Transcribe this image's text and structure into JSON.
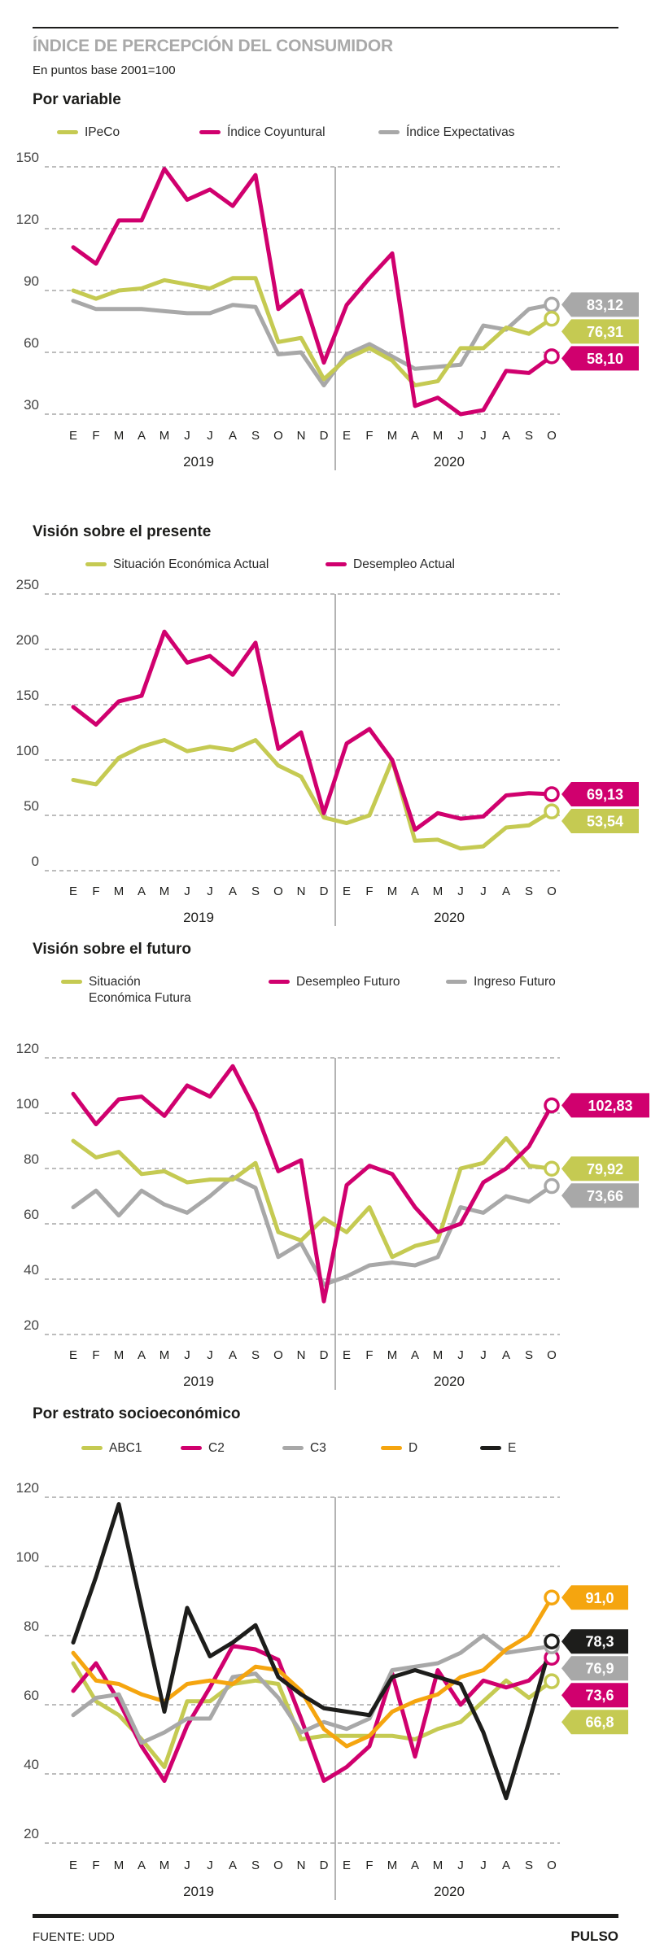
{
  "header": {
    "title": "ÍNDICE DE PERCEPCIÓN DEL CONSUMIDOR",
    "subtitle": "En puntos base 2001=100"
  },
  "footer": {
    "source": "FUENTE: UDD",
    "brand": "PULSO"
  },
  "palette": {
    "olive": "#c5ca52",
    "magenta": "#d0006e",
    "gray": "#a8a8a8",
    "orange": "#f5a50f",
    "black": "#1d1d1b",
    "grid": "#bdbdbd",
    "axis_text": "#444444",
    "divider": "#9a9a9a"
  },
  "months": [
    "E",
    "F",
    "M",
    "A",
    "M",
    "J",
    "J",
    "A",
    "S",
    "O",
    "N",
    "D",
    "E",
    "F",
    "M",
    "A",
    "M",
    "J",
    "J",
    "A",
    "S",
    "O"
  ],
  "years": [
    "2019",
    "2020"
  ],
  "chart_data": [
    {
      "type": "line",
      "title": "Por variable",
      "ylim": [
        30,
        150
      ],
      "y_ticks": [
        150,
        120,
        90,
        60,
        30
      ],
      "grid": "dashed",
      "legend_position": "top",
      "series": [
        {
          "name": "IPeCo",
          "color": "#c5ca52",
          "z": 1,
          "end_label": "76,31",
          "values": [
            90,
            86,
            90,
            91,
            95,
            93,
            91,
            96,
            96,
            65,
            67,
            47,
            57,
            62,
            56,
            44,
            46,
            62,
            62,
            72,
            69,
            76.31
          ]
        },
        {
          "name": "Índice Coyuntural",
          "color": "#d0006e",
          "z": 2,
          "end_label": "58,10",
          "values": [
            111,
            103,
            124,
            124,
            149,
            134,
            139,
            131,
            146,
            81,
            90,
            55,
            83,
            96,
            108,
            34,
            38,
            30,
            32,
            51,
            50,
            58.1
          ]
        },
        {
          "name": "Índice Expectativas",
          "color": "#a8a8a8",
          "z": 0,
          "end_label": "83,12",
          "values": [
            85,
            81,
            81,
            81,
            80,
            79,
            79,
            83,
            82,
            59,
            60,
            44,
            59,
            64,
            58,
            52,
            53,
            54,
            73,
            71,
            81,
            83.12
          ]
        }
      ]
    },
    {
      "type": "line",
      "title": "Visión sobre el presente",
      "ylim": [
        0,
        250
      ],
      "y_ticks": [
        250,
        200,
        150,
        100,
        50,
        0
      ],
      "grid": "dashed",
      "legend_position": "top",
      "series": [
        {
          "name": "Situación Económica Actual",
          "color": "#c5ca52",
          "z": 0,
          "end_label": "53,54",
          "values": [
            82,
            78,
            102,
            112,
            118,
            108,
            112,
            109,
            118,
            95,
            85,
            48,
            43,
            50,
            100,
            27,
            28,
            20,
            22,
            39,
            41,
            53.54
          ]
        },
        {
          "name": "Desempleo Actual",
          "color": "#d0006e",
          "z": 1,
          "end_label": "69,13",
          "values": [
            148,
            132,
            153,
            158,
            216,
            188,
            194,
            177,
            206,
            110,
            125,
            52,
            115,
            128,
            100,
            37,
            52,
            47,
            49,
            68,
            70,
            69.13
          ]
        }
      ]
    },
    {
      "type": "line",
      "title": "Visión sobre el futuro",
      "ylim": [
        20,
        120
      ],
      "y_ticks": [
        120,
        100,
        80,
        60,
        40,
        20
      ],
      "grid": "dashed",
      "legend_position": "top",
      "series": [
        {
          "name": "Situación Económica Futura",
          "color": "#c5ca52",
          "z": 1,
          "end_label": "79,92",
          "values": [
            90,
            84,
            86,
            78,
            79,
            75,
            76,
            76,
            82,
            57,
            54,
            62,
            57,
            66,
            48,
            52,
            54,
            80,
            82,
            91,
            81,
            79.92
          ]
        },
        {
          "name": "Desempleo Futuro",
          "color": "#d0006e",
          "z": 2,
          "end_label": "102,83",
          "values": [
            107,
            96,
            105,
            106,
            99,
            110,
            106,
            117,
            101,
            79,
            83,
            32,
            74,
            81,
            78,
            66,
            57,
            60,
            75,
            80,
            88,
            102.83
          ]
        },
        {
          "name": "Ingreso Futuro",
          "color": "#a8a8a8",
          "z": 0,
          "end_label": "73,66",
          "values": [
            66,
            72,
            63,
            72,
            67,
            64,
            70,
            77,
            73,
            48,
            53,
            38,
            41,
            45,
            46,
            45,
            48,
            66,
            64,
            70,
            68,
            73.66
          ]
        }
      ]
    },
    {
      "type": "line",
      "title": "Por estrato socioeconómico",
      "ylim": [
        20,
        120
      ],
      "y_ticks": [
        120,
        100,
        80,
        60,
        40,
        20
      ],
      "grid": "dashed",
      "legend_position": "top",
      "series": [
        {
          "name": "ABC1",
          "color": "#c5ca52",
          "z": 0,
          "end_label": "66,8",
          "values": [
            72,
            61,
            57,
            50,
            42,
            61,
            61,
            66,
            67,
            66,
            50,
            51,
            51,
            51,
            51,
            50,
            53,
            55,
            61,
            67,
            62,
            66.8
          ]
        },
        {
          "name": "C2",
          "color": "#d0006e",
          "z": 1,
          "end_label": "73,6",
          "values": [
            64,
            72,
            61,
            48,
            38,
            54,
            65,
            77,
            76,
            73,
            56,
            38,
            42,
            48,
            69,
            45,
            70,
            60,
            67,
            65,
            67,
            73.6
          ]
        },
        {
          "name": "C3",
          "color": "#a8a8a8",
          "z": 2,
          "end_label": "76,9",
          "values": [
            57,
            62,
            63,
            49,
            52,
            56,
            56,
            68,
            69,
            62,
            52,
            55,
            53,
            56,
            70,
            71,
            72,
            75,
            80,
            75,
            76,
            76.9
          ]
        },
        {
          "name": "D",
          "color": "#f5a50f",
          "z": 3,
          "end_label": "91,0",
          "values": [
            75,
            67,
            66,
            63,
            61,
            66,
            67,
            66,
            71,
            70,
            64,
            53,
            48,
            51,
            58,
            61,
            63,
            68,
            70,
            76,
            80,
            91
          ]
        },
        {
          "name": "E",
          "color": "#1d1d1b",
          "z": 4,
          "end_label": "78,3",
          "values": [
            78,
            97,
            118,
            88,
            58,
            88,
            74,
            78,
            83,
            68,
            63,
            59,
            58,
            57,
            68,
            70,
            68,
            66,
            52,
            33,
            55,
            78.3
          ]
        }
      ]
    }
  ]
}
